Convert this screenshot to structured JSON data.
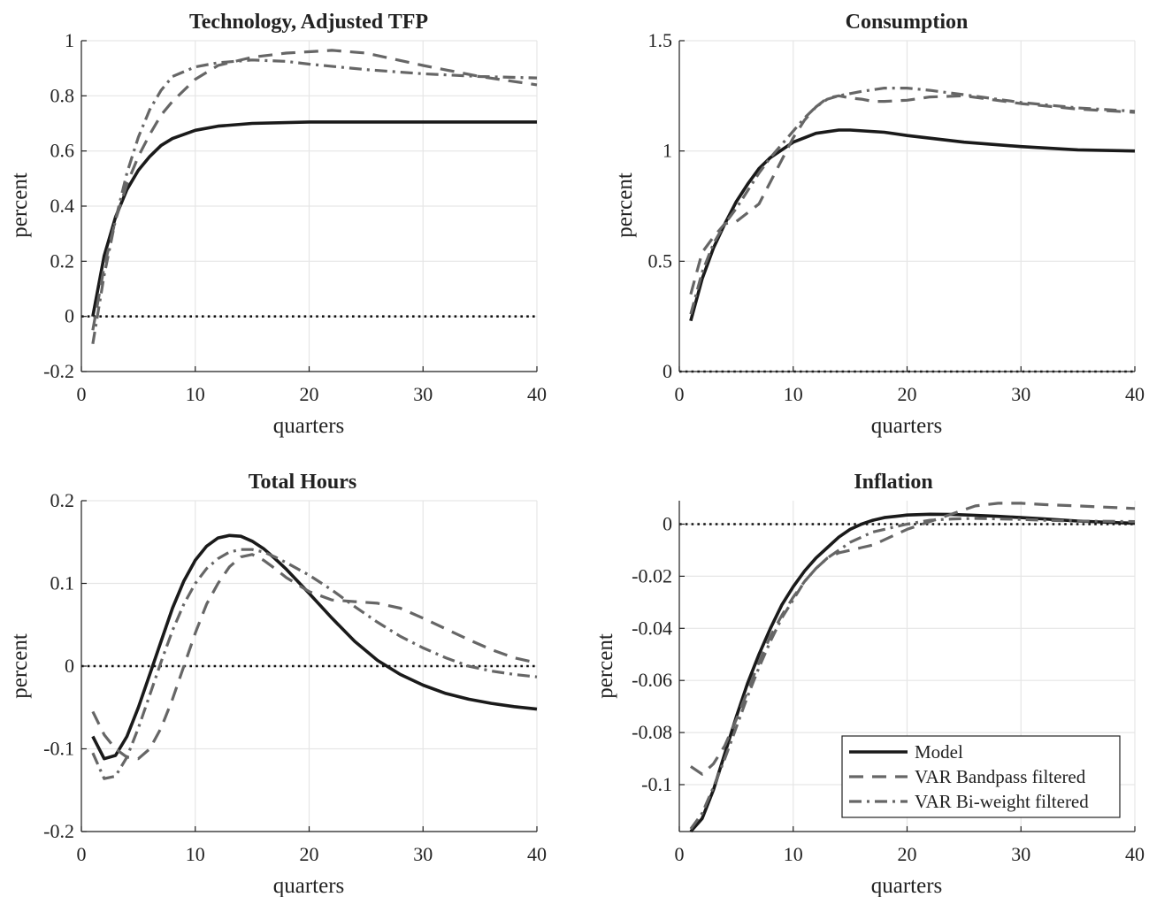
{
  "styles": {
    "Model": {
      "color": "#1a1a1a",
      "dash": "",
      "width": 3.6
    },
    "VAR Bandpass filtered": {
      "color": "#666666",
      "dash": "16 10",
      "width": 3.2
    },
    "VAR Bi-weight filtered": {
      "color": "#666666",
      "dash": "14 6 3 6",
      "width": 3.2
    }
  },
  "legend": {
    "entries": [
      "Model",
      "VAR Bandpass filtered",
      "VAR Bi-weight filtered"
    ],
    "location": "bottom-right of Inflation panel"
  },
  "chart_data": [
    {
      "type": "line",
      "title": "Technology, Adjusted TFP",
      "xlabel": "quarters",
      "ylabel": "percent",
      "xlim": [
        0,
        40
      ],
      "ylim": [
        -0.2,
        1
      ],
      "xticks": [
        0,
        10,
        20,
        30,
        40
      ],
      "yticks": [
        -0.2,
        0,
        0.2,
        0.4,
        0.6,
        0.8,
        1
      ],
      "ytick_labels": [
        "-0.2",
        "0",
        "0.2",
        "0.4",
        "0.6",
        "0.8",
        "1"
      ],
      "grid": true,
      "zero_line": true,
      "series": [
        {
          "name": "Model",
          "x": [
            1,
            2,
            3,
            4,
            5,
            6,
            7,
            8,
            10,
            12,
            15,
            20,
            25,
            30,
            35,
            40
          ],
          "y": [
            0.0,
            0.22,
            0.36,
            0.46,
            0.53,
            0.58,
            0.62,
            0.645,
            0.675,
            0.69,
            0.7,
            0.705,
            0.705,
            0.705,
            0.705,
            0.705
          ]
        },
        {
          "name": "VAR Bandpass filtered",
          "x": [
            1,
            2,
            3,
            4,
            5,
            6,
            7,
            8,
            10,
            12,
            15,
            18,
            20,
            22,
            25,
            30,
            35,
            40
          ],
          "y": [
            -0.05,
            0.18,
            0.35,
            0.48,
            0.58,
            0.66,
            0.73,
            0.78,
            0.86,
            0.91,
            0.94,
            0.955,
            0.96,
            0.965,
            0.955,
            0.91,
            0.87,
            0.84
          ]
        },
        {
          "name": "VAR Bi-weight filtered",
          "x": [
            1,
            2,
            3,
            4,
            5,
            6,
            7,
            8,
            10,
            12,
            15,
            18,
            20,
            25,
            30,
            35,
            40
          ],
          "y": [
            -0.1,
            0.15,
            0.35,
            0.52,
            0.65,
            0.75,
            0.82,
            0.87,
            0.905,
            0.92,
            0.93,
            0.925,
            0.915,
            0.895,
            0.88,
            0.87,
            0.865
          ]
        }
      ]
    },
    {
      "type": "line",
      "title": "Consumption",
      "xlabel": "quarters",
      "ylabel": "percent",
      "xlim": [
        0,
        40
      ],
      "ylim": [
        0,
        1.5
      ],
      "xticks": [
        0,
        10,
        20,
        30,
        40
      ],
      "yticks": [
        0,
        0.5,
        1,
        1.5
      ],
      "ytick_labels": [
        "0",
        "0.5",
        "1",
        "1.5"
      ],
      "grid": true,
      "zero_line": true,
      "series": [
        {
          "name": "Model",
          "x": [
            1,
            2,
            3,
            4,
            5,
            6,
            7,
            8,
            10,
            12,
            14,
            15,
            18,
            20,
            25,
            30,
            35,
            40
          ],
          "y": [
            0.23,
            0.42,
            0.56,
            0.67,
            0.77,
            0.85,
            0.92,
            0.97,
            1.04,
            1.08,
            1.095,
            1.095,
            1.085,
            1.07,
            1.04,
            1.02,
            1.005,
            1.0
          ]
        },
        {
          "name": "VAR Bandpass filtered",
          "x": [
            1,
            2,
            3,
            4,
            5,
            6,
            7,
            8,
            9,
            10,
            11,
            12,
            13,
            14,
            15,
            16,
            17,
            18,
            20,
            22,
            25,
            30,
            35,
            40
          ],
          "y": [
            0.35,
            0.54,
            0.61,
            0.67,
            0.68,
            0.72,
            0.76,
            0.86,
            0.96,
            1.06,
            1.14,
            1.2,
            1.24,
            1.25,
            1.24,
            1.235,
            1.225,
            1.225,
            1.23,
            1.245,
            1.25,
            1.215,
            1.19,
            1.175
          ]
        },
        {
          "name": "VAR Bi-weight filtered",
          "x": [
            1,
            2,
            3,
            4,
            5,
            6,
            7,
            8,
            9,
            10,
            11,
            12,
            13,
            14,
            15,
            16,
            18,
            20,
            22,
            25,
            30,
            35,
            40
          ],
          "y": [
            0.26,
            0.45,
            0.58,
            0.67,
            0.74,
            0.82,
            0.9,
            0.97,
            1.03,
            1.09,
            1.15,
            1.2,
            1.235,
            1.25,
            1.26,
            1.27,
            1.285,
            1.285,
            1.275,
            1.255,
            1.22,
            1.195,
            1.18
          ]
        }
      ]
    },
    {
      "type": "line",
      "title": "Total Hours",
      "xlabel": "quarters",
      "ylabel": "percent",
      "xlim": [
        0,
        40
      ],
      "ylim": [
        -0.2,
        0.2
      ],
      "xticks": [
        0,
        10,
        20,
        30,
        40
      ],
      "yticks": [
        -0.2,
        -0.1,
        0,
        0.1,
        0.2
      ],
      "ytick_labels": [
        "-0.2",
        "-0.1",
        "0",
        "0.1",
        "0.2"
      ],
      "grid": true,
      "zero_line": true,
      "series": [
        {
          "name": "Model",
          "x": [
            1,
            2,
            3,
            4,
            5,
            6,
            7,
            8,
            9,
            10,
            11,
            12,
            13,
            14,
            15,
            16,
            17,
            18,
            20,
            22,
            24,
            26,
            28,
            30,
            32,
            34,
            36,
            38,
            40
          ],
          "y": [
            -0.085,
            -0.112,
            -0.108,
            -0.085,
            -0.05,
            -0.01,
            0.03,
            0.07,
            0.103,
            0.128,
            0.145,
            0.155,
            0.158,
            0.157,
            0.151,
            0.142,
            0.13,
            0.117,
            0.088,
            0.058,
            0.03,
            0.007,
            -0.01,
            -0.023,
            -0.033,
            -0.04,
            -0.045,
            -0.049,
            -0.052
          ]
        },
        {
          "name": "VAR Bandpass filtered",
          "x": [
            1,
            2,
            3,
            4,
            5,
            6,
            7,
            8,
            9,
            10,
            11,
            12,
            13,
            14,
            15,
            16,
            17,
            18,
            20,
            22,
            24,
            26,
            28,
            30,
            32,
            34,
            36,
            38,
            40
          ],
          "y": [
            -0.055,
            -0.083,
            -0.1,
            -0.11,
            -0.112,
            -0.1,
            -0.075,
            -0.04,
            0.0,
            0.04,
            0.075,
            0.1,
            0.12,
            0.132,
            0.135,
            0.128,
            0.118,
            0.107,
            0.09,
            0.08,
            0.078,
            0.076,
            0.07,
            0.058,
            0.045,
            0.032,
            0.02,
            0.01,
            0.004
          ]
        },
        {
          "name": "VAR Bi-weight filtered",
          "x": [
            1,
            2,
            3,
            4,
            5,
            6,
            7,
            8,
            9,
            10,
            11,
            12,
            13,
            14,
            15,
            16,
            17,
            18,
            20,
            22,
            24,
            26,
            28,
            30,
            32,
            34,
            36,
            38,
            40
          ],
          "y": [
            -0.105,
            -0.136,
            -0.133,
            -0.11,
            -0.075,
            -0.035,
            0.005,
            0.043,
            0.075,
            0.1,
            0.118,
            0.13,
            0.138,
            0.141,
            0.141,
            0.138,
            0.132,
            0.125,
            0.11,
            0.092,
            0.072,
            0.053,
            0.036,
            0.022,
            0.01,
            0.0,
            -0.006,
            -0.01,
            -0.013
          ]
        }
      ]
    },
    {
      "type": "line",
      "title": "Inflation",
      "xlabel": "quarters",
      "ylabel": "percent",
      "xlim": [
        0,
        40
      ],
      "ylim": [
        -0.118,
        0.009
      ],
      "xticks": [
        0,
        10,
        20,
        30,
        40
      ],
      "yticks": [
        -0.1,
        -0.08,
        -0.06,
        -0.04,
        -0.02,
        0
      ],
      "ytick_labels": [
        "-0.1",
        "-0.08",
        "-0.06",
        "-0.04",
        "-0.02",
        "0"
      ],
      "grid": true,
      "zero_line": true,
      "series": [
        {
          "name": "Model",
          "x": [
            1,
            2,
            3,
            4,
            5,
            6,
            7,
            8,
            9,
            10,
            11,
            12,
            13,
            14,
            15,
            16,
            17,
            18,
            19,
            20,
            22,
            24,
            26,
            28,
            30,
            32,
            35,
            40
          ],
          "y": [
            -0.118,
            -0.113,
            -0.102,
            -0.088,
            -0.074,
            -0.061,
            -0.05,
            -0.04,
            -0.031,
            -0.024,
            -0.018,
            -0.013,
            -0.009,
            -0.005,
            -0.002,
            0.0,
            0.0015,
            0.0025,
            0.003,
            0.0035,
            0.0038,
            0.0037,
            0.0034,
            0.003,
            0.0025,
            0.002,
            0.0012,
            0.0003
          ]
        },
        {
          "name": "VAR Bandpass filtered",
          "x": [
            1,
            2,
            3,
            4,
            5,
            6,
            7,
            8,
            9,
            10,
            11,
            12,
            13,
            14,
            15,
            16,
            17,
            18,
            19,
            20,
            22,
            24,
            26,
            28,
            30,
            32,
            35,
            40
          ],
          "y": [
            -0.093,
            -0.096,
            -0.092,
            -0.085,
            -0.075,
            -0.064,
            -0.053,
            -0.043,
            -0.035,
            -0.028,
            -0.022,
            -0.017,
            -0.013,
            -0.011,
            -0.01,
            -0.009,
            -0.008,
            -0.006,
            -0.004,
            -0.002,
            0.001,
            0.004,
            0.007,
            0.008,
            0.008,
            0.0075,
            0.007,
            0.006
          ]
        },
        {
          "name": "VAR Bi-weight filtered",
          "x": [
            1,
            2,
            3,
            4,
            5,
            6,
            7,
            8,
            9,
            10,
            11,
            12,
            13,
            14,
            15,
            16,
            17,
            18,
            19,
            20,
            22,
            24,
            26,
            28,
            30,
            32,
            35,
            40
          ],
          "y": [
            -0.117,
            -0.111,
            -0.101,
            -0.09,
            -0.078,
            -0.066,
            -0.055,
            -0.045,
            -0.036,
            -0.029,
            -0.022,
            -0.017,
            -0.013,
            -0.01,
            -0.007,
            -0.005,
            -0.003,
            -0.002,
            -0.001,
            0.0,
            0.0015,
            0.002,
            0.0022,
            0.002,
            0.0018,
            0.0015,
            0.0012,
            0.001
          ]
        }
      ]
    }
  ]
}
